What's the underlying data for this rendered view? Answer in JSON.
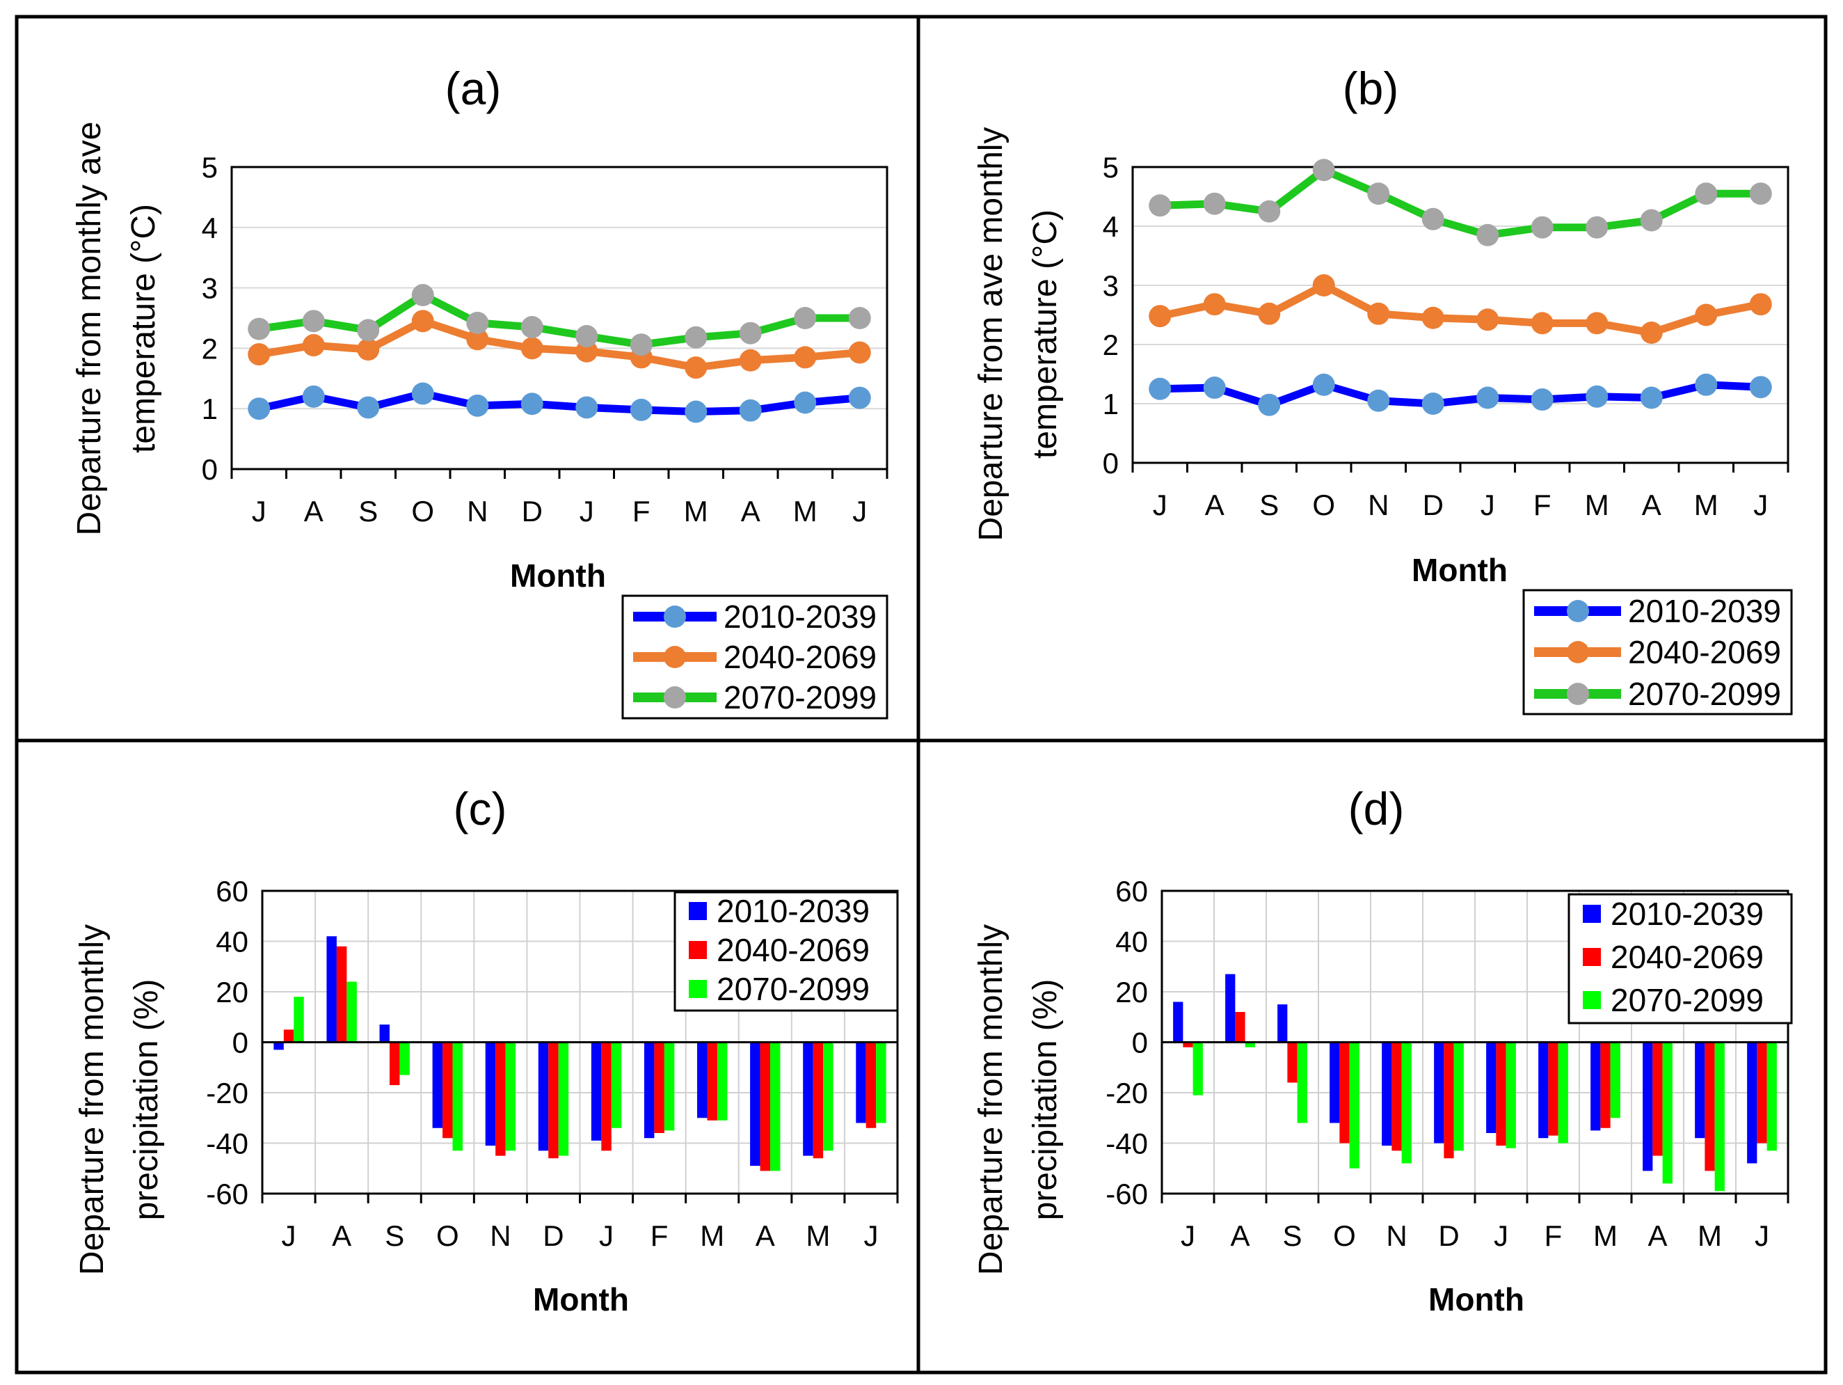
{
  "colors": {
    "series_line": [
      "#0000ff",
      "#ed7d31",
      "#1ec81e"
    ],
    "series_marker": [
      "#5b9bd5",
      "#ed7d31",
      "#a5a5a5"
    ],
    "series_bar": [
      "#0000ff",
      "#ff0000",
      "#00ff00"
    ]
  },
  "chart_data": [
    {
      "type": "line",
      "title": "(a)",
      "xlabel": "Month",
      "ylabel": [
        "Departure from monthly ave",
        "temperature (°C)"
      ],
      "categories": [
        "J",
        "A",
        "S",
        "O",
        "N",
        "D",
        "J",
        "F",
        "M",
        "A",
        "M",
        "J"
      ],
      "ylim": [
        0,
        5
      ],
      "yticks": [
        "0",
        "1",
        "2",
        "3",
        "4",
        "5"
      ],
      "legend_position": "bottom-right",
      "series": [
        {
          "name": "2010-2039",
          "values": [
            1.0,
            1.2,
            1.02,
            1.25,
            1.05,
            1.08,
            1.02,
            0.98,
            0.95,
            0.97,
            1.1,
            1.18
          ]
        },
        {
          "name": "2040-2069",
          "values": [
            1.9,
            2.05,
            1.98,
            2.45,
            2.15,
            2.0,
            1.95,
            1.85,
            1.68,
            1.8,
            1.85,
            1.93
          ]
        },
        {
          "name": "2070-2099",
          "values": [
            2.32,
            2.45,
            2.3,
            2.88,
            2.42,
            2.35,
            2.2,
            2.06,
            2.18,
            2.25,
            2.5,
            2.5
          ]
        }
      ]
    },
    {
      "type": "line",
      "title": "(b)",
      "xlabel": "Month",
      "ylabel": [
        "Departure from ave monthly",
        "temperature (°C)"
      ],
      "categories": [
        "J",
        "A",
        "S",
        "O",
        "N",
        "D",
        "J",
        "F",
        "M",
        "A",
        "M",
        "J"
      ],
      "ylim": [
        0,
        5
      ],
      "yticks": [
        "0",
        "1",
        "2",
        "3",
        "4",
        "5"
      ],
      "legend_position": "bottom-right",
      "series": [
        {
          "name": "2010-2039",
          "values": [
            1.25,
            1.27,
            0.98,
            1.32,
            1.05,
            1.0,
            1.1,
            1.07,
            1.12,
            1.1,
            1.32,
            1.28
          ]
        },
        {
          "name": "2040-2069",
          "values": [
            2.48,
            2.68,
            2.52,
            3.0,
            2.52,
            2.45,
            2.42,
            2.36,
            2.36,
            2.2,
            2.5,
            2.68
          ]
        },
        {
          "name": "2070-2099",
          "values": [
            4.35,
            4.38,
            4.25,
            4.95,
            4.55,
            4.12,
            3.85,
            3.98,
            3.98,
            4.1,
            4.55,
            4.55
          ]
        }
      ]
    },
    {
      "type": "bar",
      "title": "(c)",
      "xlabel": "Month",
      "ylabel": [
        "Departure from monthly",
        "precipitation (%)"
      ],
      "categories": [
        "J",
        "A",
        "S",
        "O",
        "N",
        "D",
        "J",
        "F",
        "M",
        "A",
        "M",
        "J"
      ],
      "ylim": [
        -60,
        60
      ],
      "yticks": [
        "-60",
        "-40",
        "-20",
        "0",
        "20",
        "40",
        "60"
      ],
      "legend_position": "top-right",
      "series": [
        {
          "name": "2010-2039",
          "values": [
            -3,
            42,
            7,
            -34,
            -41,
            -43,
            -39,
            -38,
            -30,
            -49,
            -45,
            -32
          ]
        },
        {
          "name": "2040-2069",
          "values": [
            5,
            38,
            -17,
            -38,
            -45,
            -46,
            -43,
            -36,
            -31,
            -51,
            -46,
            -34
          ]
        },
        {
          "name": "2070-2099",
          "values": [
            18,
            24,
            -13,
            -43,
            -43,
            -45,
            -34,
            -35,
            -31,
            -51,
            -43,
            -32
          ]
        }
      ]
    },
    {
      "type": "bar",
      "title": "(d)",
      "xlabel": "Month",
      "ylabel": [
        "Departure from monthly",
        "precipitation (%)"
      ],
      "categories": [
        "J",
        "A",
        "S",
        "O",
        "N",
        "D",
        "J",
        "F",
        "M",
        "A",
        "M",
        "J"
      ],
      "ylim": [
        -60,
        60
      ],
      "yticks": [
        "-60",
        "-40",
        "-20",
        "0",
        "20",
        "40",
        "60"
      ],
      "legend_position": "top-right",
      "series": [
        {
          "name": "2010-2039",
          "values": [
            16,
            27,
            15,
            -32,
            -41,
            -40,
            -36,
            -38,
            -35,
            -51,
            -38,
            -48
          ]
        },
        {
          "name": "2040-2069",
          "values": [
            -2,
            12,
            -16,
            -40,
            -43,
            -46,
            -41,
            -37,
            -34,
            -45,
            -51,
            -40
          ]
        },
        {
          "name": "2070-2099",
          "values": [
            -21,
            -2,
            -32,
            -50,
            -48,
            -43,
            -42,
            -40,
            -30,
            -56,
            -59,
            -43
          ]
        }
      ]
    }
  ]
}
